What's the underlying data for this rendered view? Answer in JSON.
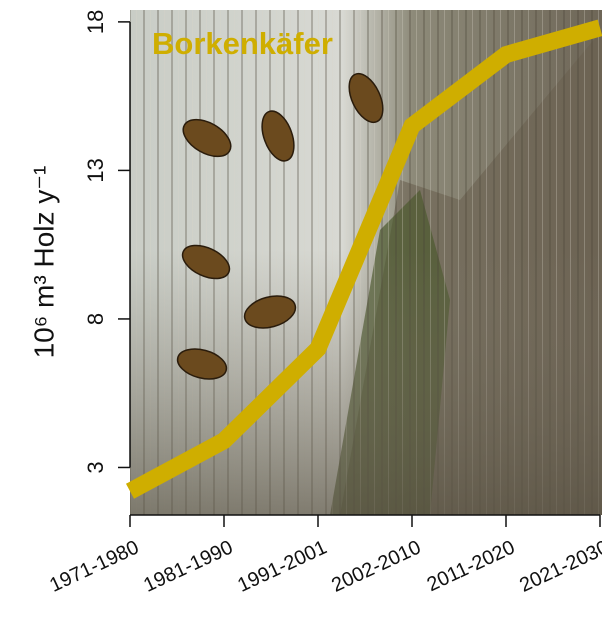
{
  "chart_data": {
    "type": "line",
    "title": "Borkenkäfer",
    "ylabel": "10⁶ m³ Holz y⁻¹",
    "categories": [
      "1971-1980",
      "1981-1990",
      "1991-2001",
      "2002-2010",
      "2011-2020",
      "2021-2030"
    ],
    "values": [
      2.2,
      3.9,
      7.0,
      14.5,
      16.9,
      17.8
    ],
    "color": "#cfae00",
    "ylim": [
      1.4,
      18.4
    ],
    "yticks": [
      3,
      8,
      13,
      18
    ],
    "grid": false
  }
}
